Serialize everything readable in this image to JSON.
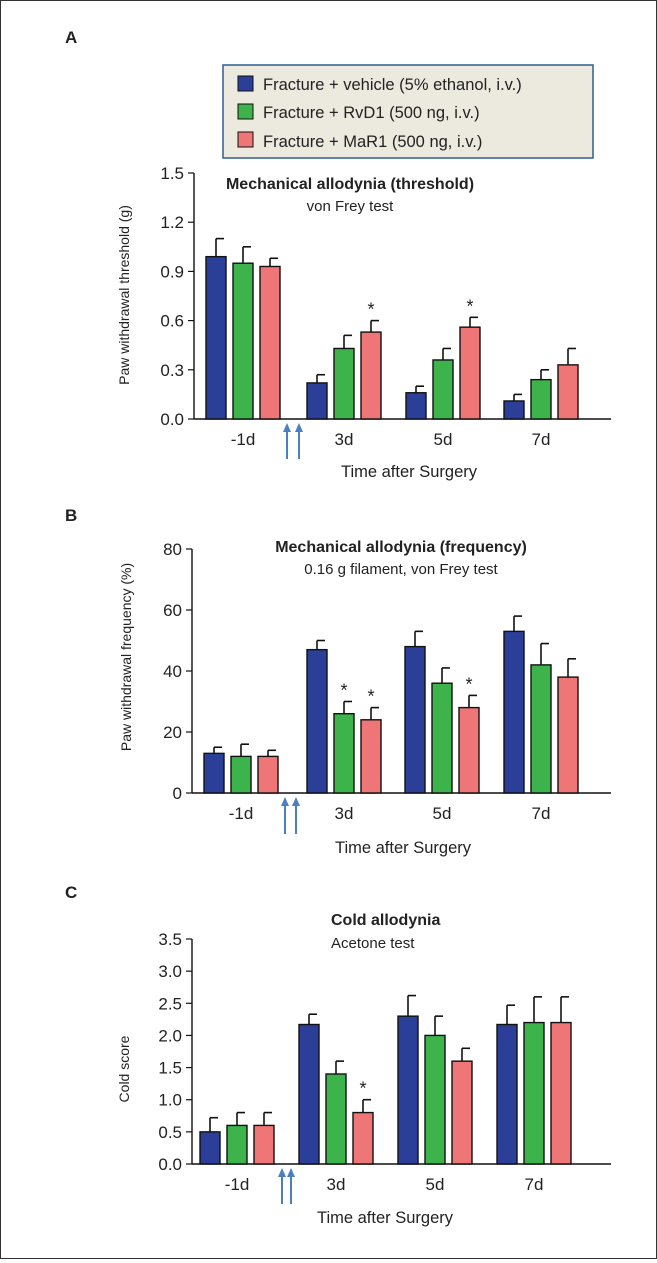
{
  "legend": {
    "entries": [
      {
        "label": "Fracture + vehicle (5% ethanol, i.v.)",
        "color": "#2b3f98"
      },
      {
        "label": "Fracture + RvD1 (500 ng, i.v.)",
        "color": "#3cb44b"
      },
      {
        "label": "Fracture + MaR1 (500 ng, i.v.)",
        "color": "#ef7676"
      }
    ],
    "background": "#ece9df",
    "border": "#2f5d8f"
  },
  "chart_data": [
    {
      "panel": "A",
      "type": "bar",
      "title": "Mechanical allodynia (threshold)",
      "subtitle": "von Frey test",
      "xlabel": "Time after Surgery",
      "ylabel": "Paw withdrawal threshold (g)",
      "ylim": [
        0,
        1.5
      ],
      "yticks": [
        "0.0",
        "0.3",
        "0.6",
        "0.9",
        "1.2",
        "1.5"
      ],
      "categories": [
        "-1d",
        "3d",
        "5d",
        "7d"
      ],
      "series": [
        {
          "values": [
            0.99,
            0.22,
            0.16,
            0.11
          ],
          "errors": [
            0.11,
            0.05,
            0.04,
            0.04
          ],
          "sig": [
            false,
            false,
            false,
            false
          ]
        },
        {
          "values": [
            0.95,
            0.43,
            0.36,
            0.24
          ],
          "errors": [
            0.1,
            0.08,
            0.07,
            0.06
          ],
          "sig": [
            false,
            false,
            false,
            false
          ]
        },
        {
          "values": [
            0.93,
            0.53,
            0.56,
            0.33
          ],
          "errors": [
            0.05,
            0.07,
            0.06,
            0.1
          ],
          "sig": [
            false,
            true,
            true,
            false
          ]
        }
      ]
    },
    {
      "panel": "B",
      "type": "bar",
      "title": "Mechanical allodynia (frequency)",
      "subtitle": "0.16 g filament, von Frey test",
      "xlabel": "Time after Surgery",
      "ylabel": "Paw withdrawal frequency (%)",
      "ylim": [
        0,
        80
      ],
      "yticks": [
        "0",
        "20",
        "40",
        "60",
        "80"
      ],
      "categories": [
        "-1d",
        "3d",
        "5d",
        "7d"
      ],
      "series": [
        {
          "values": [
            13,
            47,
            48,
            53
          ],
          "errors": [
            2,
            3,
            5,
            5
          ],
          "sig": [
            false,
            false,
            false,
            false
          ]
        },
        {
          "values": [
            12,
            26,
            36,
            42
          ],
          "errors": [
            4,
            4,
            5,
            7
          ],
          "sig": [
            false,
            true,
            false,
            false
          ]
        },
        {
          "values": [
            12,
            24,
            28,
            38
          ],
          "errors": [
            2,
            4,
            4,
            6
          ],
          "sig": [
            false,
            true,
            true,
            false
          ]
        }
      ]
    },
    {
      "panel": "C",
      "type": "bar",
      "title": "Cold allodynia",
      "subtitle": "Acetone test",
      "xlabel": "Time after Surgery",
      "ylabel": "Cold score",
      "ylim": [
        0,
        3.5
      ],
      "yticks": [
        "0.0",
        "0.5",
        "1.0",
        "1.5",
        "2.0",
        "2.5",
        "3.0",
        "3.5"
      ],
      "categories": [
        "-1d",
        "3d",
        "5d",
        "7d"
      ],
      "series": [
        {
          "values": [
            0.5,
            2.17,
            2.3,
            2.17
          ],
          "errors": [
            0.22,
            0.16,
            0.32,
            0.3
          ],
          "sig": [
            false,
            false,
            false,
            false
          ]
        },
        {
          "values": [
            0.6,
            1.4,
            2.0,
            2.2
          ],
          "errors": [
            0.2,
            0.2,
            0.3,
            0.4
          ],
          "sig": [
            false,
            false,
            false,
            false
          ]
        },
        {
          "values": [
            0.6,
            0.8,
            1.6,
            2.2
          ],
          "errors": [
            0.2,
            0.2,
            0.2,
            0.4
          ],
          "sig": [
            false,
            true,
            false,
            false
          ]
        }
      ]
    }
  ]
}
